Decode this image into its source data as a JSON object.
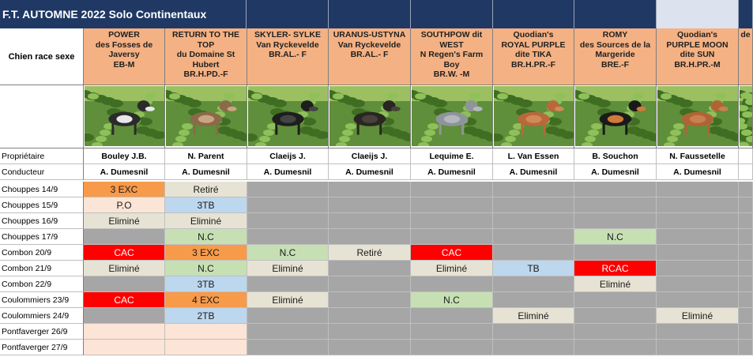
{
  "title": "F.T. AUTOMNE 2022 Solo Continentaux",
  "header_label": "Chien race sexe",
  "dogs": [
    {
      "lines": [
        "POWER",
        "des Fosses de",
        "Javersy"
      ],
      "meta": "EB-M",
      "owner": "Bouley J.B.",
      "handler": "A. Dumesnil",
      "coat": "#2b2b2b",
      "coat2": "#e8e8e8"
    },
    {
      "lines": [
        "RETURN TO THE",
        "TOP",
        "du Domaine St",
        "Hubert"
      ],
      "meta": "BR.H.PD.-F",
      "owner": "N. Parent",
      "handler": "A. Dumesnil",
      "coat": "#8a6a4a",
      "coat2": "#c9a582"
    },
    {
      "lines": [
        "SKYLER- SYLKE",
        "Van Ryckevelde"
      ],
      "meta": "BR.AL.- F",
      "owner": "Claeijs J.",
      "handler": "A. Dumesnil",
      "coat": "#1e1e1e",
      "coat2": "#444444"
    },
    {
      "lines": [
        "URANUS-USTYNA",
        "Van Ryckevelde"
      ],
      "meta": "BR.AL.- F",
      "owner": "Claeijs J.",
      "handler": "A. Dumesnil",
      "coat": "#2a2622",
      "coat2": "#4a423a"
    },
    {
      "lines": [
        "SOUTHPOW dit",
        "WEST",
        "N Regen's Farm",
        "Boy"
      ],
      "meta": "BR.W. -M",
      "owner": "Lequime E.",
      "handler": "A. Dumesnil",
      "coat": "#8f949a",
      "coat2": "#b4b8bc"
    },
    {
      "lines": [
        "Quodian's",
        "ROYAL PURPLE",
        "dite TIKA"
      ],
      "meta": "BR.H.PR.-F",
      "owner": "L. Van Essen",
      "handler": "A. Dumesnil",
      "coat": "#b8683a",
      "coat2": "#d08a58"
    },
    {
      "lines": [
        "ROMY",
        "des Sources de la",
        "Margeride"
      ],
      "meta": "BRE.-F",
      "owner": "B. Souchon",
      "handler": "A. Dumesnil",
      "coat": "#1a1a1a",
      "coat2": "#d07a3a"
    },
    {
      "lines": [
        "Quodian's",
        "PURPLE MOON",
        "dite SUN"
      ],
      "meta": "BR.H.PR.-M",
      "owner": "N. Faussetelle",
      "handler": "A. Dumesnil",
      "coat": "#b06436",
      "coat2": "#c98050"
    },
    {
      "lines": [
        "",
        "de"
      ],
      "meta": "",
      "owner": "",
      "handler": "",
      "coat": "#8a6a4a",
      "coat2": "#c9a582"
    }
  ],
  "info_labels": {
    "owner": "Propriétaire",
    "handler": "Conducteur"
  },
  "rows": [
    {
      "label": "Chouppes 14/9",
      "cells": [
        "3 EXC",
        "Retiré",
        "",
        "",
        "",
        "",
        "",
        "",
        ""
      ],
      "colors": [
        "orange",
        "beige",
        "grey",
        "grey",
        "grey",
        "grey",
        "grey",
        "grey",
        "grey"
      ]
    },
    {
      "label": "Chouppes 15/9",
      "cells": [
        "P.O",
        "3TB",
        "",
        "",
        "",
        "",
        "",
        "",
        ""
      ],
      "colors": [
        "pinkbeige",
        "blue",
        "grey",
        "grey",
        "grey",
        "grey",
        "grey",
        "grey",
        "grey"
      ]
    },
    {
      "label": "Chouppes 16/9",
      "cells": [
        "Eliminé",
        "Eliminé",
        "",
        "",
        "",
        "",
        "",
        "",
        ""
      ],
      "colors": [
        "beige",
        "beige",
        "grey",
        "grey",
        "grey",
        "grey",
        "grey",
        "grey",
        "grey"
      ]
    },
    {
      "label": "Chouppes 17/9",
      "cells": [
        "",
        "N.C",
        "",
        "",
        "",
        "",
        "N.C",
        "",
        ""
      ],
      "colors": [
        "grey",
        "green",
        "grey",
        "grey",
        "grey",
        "grey",
        "green",
        "grey",
        "grey"
      ]
    },
    {
      "label": "Combon 20/9",
      "cells": [
        "CAC",
        "3 EXC",
        "N.C",
        "Retiré",
        "CAC",
        "",
        "",
        "",
        ""
      ],
      "colors": [
        "red",
        "orange",
        "green",
        "beige",
        "red",
        "grey",
        "grey",
        "grey",
        "grey"
      ]
    },
    {
      "label": "Combon 21/9",
      "cells": [
        "Eliminé",
        "N.C",
        "Eliminé",
        "",
        "Eliminé",
        "TB",
        "RCAC",
        "",
        ""
      ],
      "colors": [
        "beige",
        "green",
        "beige",
        "grey",
        "beige",
        "blue",
        "red",
        "grey",
        "grey"
      ]
    },
    {
      "label": "Combon 22/9",
      "cells": [
        "",
        "3TB",
        "",
        "",
        "",
        "",
        "Eliminé",
        "",
        ""
      ],
      "colors": [
        "grey",
        "blue",
        "grey",
        "grey",
        "grey",
        "grey",
        "beige",
        "grey",
        "grey"
      ]
    },
    {
      "label": "Coulommiers 23/9",
      "cells": [
        "CAC",
        "4 EXC",
        "Eliminé",
        "",
        "N.C",
        "",
        "",
        "",
        ""
      ],
      "colors": [
        "red",
        "orange",
        "beige",
        "grey",
        "green",
        "grey",
        "grey",
        "grey",
        "grey"
      ]
    },
    {
      "label": "Coulommiers 24/9",
      "cells": [
        "",
        "2TB",
        "",
        "",
        "",
        "Eliminé",
        "",
        "Eliminé",
        ""
      ],
      "colors": [
        "grey",
        "blue",
        "grey",
        "grey",
        "grey",
        "beige",
        "grey",
        "beige",
        "grey"
      ]
    },
    {
      "label": "Pontfaverger 26/9",
      "cells": [
        "",
        "",
        "",
        "",
        "",
        "",
        "",
        "",
        ""
      ],
      "colors": [
        "peach",
        "peach",
        "grey",
        "grey",
        "grey",
        "grey",
        "grey",
        "grey",
        "grey"
      ]
    },
    {
      "label": "Pontfaverger 27/9",
      "cells": [
        "",
        "",
        "",
        "",
        "",
        "",
        "",
        "",
        ""
      ],
      "colors": [
        "peach",
        "peach",
        "grey",
        "grey",
        "grey",
        "grey",
        "grey",
        "grey",
        "grey"
      ]
    }
  ]
}
